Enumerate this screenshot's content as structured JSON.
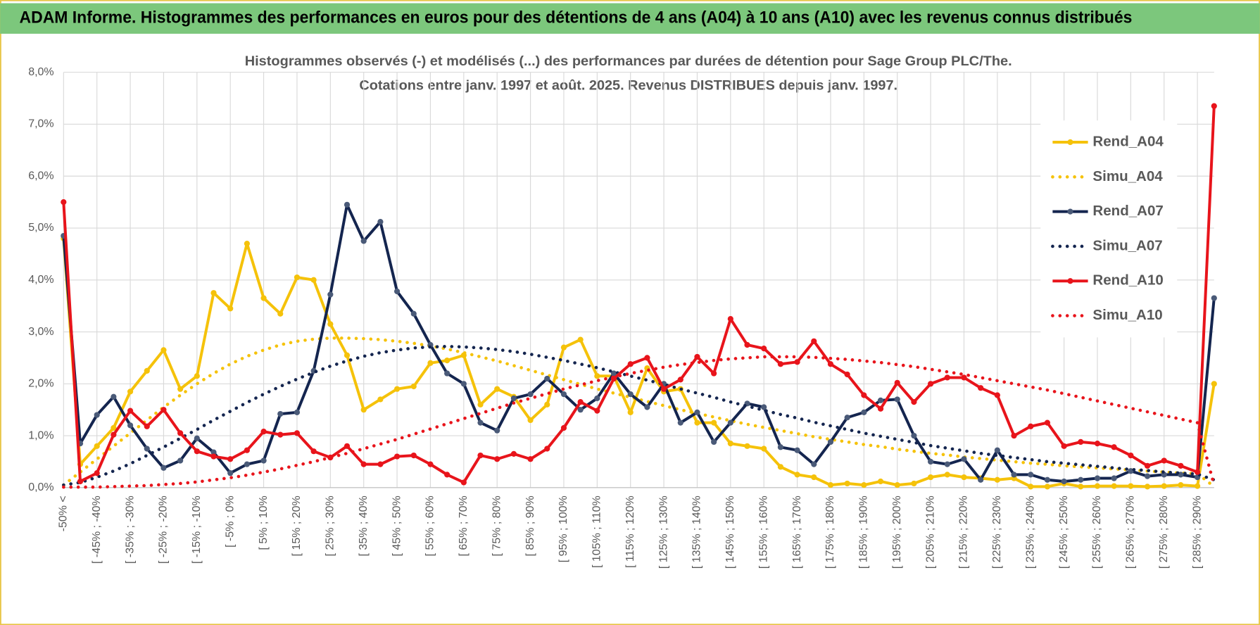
{
  "header": {
    "title": "ADAM Informe. Histogrammes des performances en euros pour des détentions de 4 ans (A04) à 10 ans (A10) avec les revenus connus distribués"
  },
  "chart_data": {
    "type": "line",
    "title": [
      "Histogrammes observés (-) et modélisés (...) des performances par durées de détention pour Sage Group PLC/The.",
      "Cotations entre janv. 1997 et août. 2025. Revenus DISTRIBUES depuis janv. 1997."
    ],
    "categories": [
      "-50% <",
      null,
      "[ -45% ; -40%",
      null,
      "[ -35% ; -30%",
      null,
      "[ -25% ; -20%",
      null,
      "[ -15% ; -10%",
      null,
      "[ -5% ; 0%",
      null,
      "[ 5% ; 10%",
      null,
      "[ 15% ; 20%",
      null,
      "[ 25% ; 30%",
      null,
      "[ 35% ; 40%",
      null,
      "[ 45% ; 50%",
      null,
      "[ 55% ; 60%",
      null,
      "[ 65% ; 70%",
      null,
      "[ 75% ; 80%",
      null,
      "[ 85% ; 90%",
      null,
      "[ 95% ; 100%",
      null,
      "[ 105% ; 110%",
      null,
      "[ 115% ; 120%",
      null,
      "[ 125% ; 130%",
      null,
      "[ 135% ; 140%",
      null,
      "[ 145% ; 150%",
      null,
      "[ 155% ; 160%",
      null,
      "[ 165% ; 170%",
      null,
      "[ 175% ; 180%",
      null,
      "[ 185% ; 190%",
      null,
      "[ 195% ; 200%",
      null,
      "[ 205% ; 210%",
      null,
      "[ 215% ; 220%",
      null,
      "[ 225% ; 230%",
      null,
      "[ 235% ; 240%",
      null,
      "[ 245% ; 250%",
      null,
      "[ 255% ; 260%",
      null,
      "[ 265% ; 270%",
      null,
      "[ 275% ; 280%",
      null,
      "[ 285% ; 290%",
      null
    ],
    "series": [
      {
        "name": "Rend_A04",
        "color": "#f5c20a",
        "style": "solid",
        "markers": true,
        "values": [
          4.8,
          0.45,
          0.8,
          1.15,
          1.85,
          2.25,
          2.65,
          1.9,
          2.15,
          3.75,
          3.45,
          4.7,
          3.65,
          3.35,
          4.05,
          4.0,
          3.15,
          2.55,
          1.5,
          1.7,
          1.9,
          1.95,
          2.4,
          2.45,
          2.55,
          1.6,
          1.9,
          1.75,
          1.3,
          1.6,
          2.7,
          2.85,
          2.15,
          2.15,
          1.45,
          2.3,
          1.85,
          1.9,
          1.25,
          1.25,
          0.85,
          0.8,
          0.75,
          0.4,
          0.25,
          0.2,
          0.05,
          0.08,
          0.05,
          0.12,
          0.05,
          0.08,
          0.2,
          0.25,
          0.2,
          0.18,
          0.15,
          0.18,
          0.02,
          0.02,
          0.08,
          0.02,
          0.03,
          0.03,
          0.03,
          0.02,
          0.03,
          0.05,
          0.03,
          2.0
        ]
      },
      {
        "name": "Simu_A04",
        "color": "#f5c20a",
        "style": "dotted",
        "markers": false,
        "values": [
          0.05,
          0.3,
          0.55,
          0.8,
          1.05,
          1.3,
          1.55,
          1.78,
          2.0,
          2.2,
          2.38,
          2.53,
          2.65,
          2.75,
          2.82,
          2.86,
          2.88,
          2.88,
          2.87,
          2.85,
          2.82,
          2.78,
          2.73,
          2.67,
          2.6,
          2.52,
          2.44,
          2.35,
          2.26,
          2.17,
          2.08,
          1.99,
          1.9,
          1.82,
          1.74,
          1.66,
          1.58,
          1.5,
          1.43,
          1.36,
          1.29,
          1.22,
          1.16,
          1.1,
          1.04,
          0.98,
          0.93,
          0.88,
          0.83,
          0.79,
          0.74,
          0.7,
          0.66,
          0.63,
          0.59,
          0.56,
          0.53,
          0.5,
          0.47,
          0.45,
          0.42,
          0.4,
          0.38,
          0.36,
          0.34,
          0.32,
          0.3,
          0.28,
          0.27,
          0.02
        ]
      },
      {
        "name": "Rend_A07",
        "color": "#14254f",
        "style": "solid",
        "markers": true,
        "values": [
          4.85,
          0.85,
          1.4,
          1.75,
          1.2,
          0.75,
          0.38,
          0.52,
          0.95,
          0.68,
          0.28,
          0.45,
          0.52,
          1.42,
          1.45,
          2.25,
          3.72,
          5.45,
          4.75,
          5.12,
          3.78,
          3.35,
          2.75,
          2.2,
          2.0,
          1.25,
          1.1,
          1.72,
          1.8,
          2.1,
          1.8,
          1.5,
          1.72,
          2.2,
          1.8,
          1.55,
          2.0,
          1.25,
          1.45,
          0.88,
          1.25,
          1.62,
          1.55,
          0.78,
          0.72,
          0.45,
          0.88,
          1.35,
          1.45,
          1.68,
          1.7,
          1.0,
          0.5,
          0.45,
          0.55,
          0.15,
          0.72,
          0.25,
          0.25,
          0.15,
          0.12,
          0.15,
          0.18,
          0.18,
          0.32,
          0.22,
          0.25,
          0.25,
          0.2,
          3.65
        ]
      },
      {
        "name": "Simu_A07",
        "color": "#14254f",
        "style": "dotted",
        "markers": false,
        "values": [
          0.05,
          0.1,
          0.2,
          0.32,
          0.46,
          0.62,
          0.78,
          0.95,
          1.12,
          1.3,
          1.47,
          1.64,
          1.8,
          1.95,
          2.09,
          2.22,
          2.34,
          2.44,
          2.53,
          2.6,
          2.65,
          2.69,
          2.71,
          2.72,
          2.71,
          2.69,
          2.66,
          2.62,
          2.57,
          2.51,
          2.45,
          2.38,
          2.31,
          2.23,
          2.15,
          2.07,
          1.99,
          1.9,
          1.82,
          1.74,
          1.65,
          1.57,
          1.49,
          1.41,
          1.34,
          1.26,
          1.19,
          1.12,
          1.05,
          0.99,
          0.93,
          0.87,
          0.81,
          0.76,
          0.71,
          0.66,
          0.62,
          0.58,
          0.54,
          0.5,
          0.47,
          0.44,
          0.41,
          0.38,
          0.35,
          0.33,
          0.3,
          0.28,
          0.26,
          0.15
        ]
      },
      {
        "name": "Rend_A10",
        "color": "#e8141b",
        "style": "solid",
        "markers": true,
        "values": [
          5.5,
          0.12,
          0.28,
          1.02,
          1.48,
          1.18,
          1.5,
          1.05,
          0.7,
          0.6,
          0.55,
          0.72,
          1.08,
          1.02,
          1.05,
          0.7,
          0.58,
          0.8,
          0.45,
          0.45,
          0.6,
          0.62,
          0.45,
          0.25,
          0.1,
          0.62,
          0.55,
          0.65,
          0.55,
          0.75,
          1.15,
          1.65,
          1.48,
          2.1,
          2.38,
          2.5,
          1.9,
          2.08,
          2.52,
          2.2,
          3.25,
          2.75,
          2.68,
          2.38,
          2.42,
          2.82,
          2.38,
          2.18,
          1.78,
          1.52,
          2.02,
          1.65,
          2.0,
          2.12,
          2.12,
          1.92,
          1.78,
          1.0,
          1.18,
          1.25,
          0.8,
          0.88,
          0.85,
          0.78,
          0.62,
          0.42,
          0.52,
          0.42,
          0.3,
          7.35
        ]
      },
      {
        "name": "Simu_A10",
        "color": "#e8141b",
        "style": "dotted",
        "markers": false,
        "values": [
          0.01,
          0.01,
          0.01,
          0.02,
          0.03,
          0.04,
          0.06,
          0.08,
          0.11,
          0.15,
          0.19,
          0.24,
          0.3,
          0.36,
          0.43,
          0.5,
          0.58,
          0.66,
          0.75,
          0.84,
          0.93,
          1.03,
          1.13,
          1.23,
          1.33,
          1.43,
          1.53,
          1.63,
          1.72,
          1.81,
          1.9,
          1.98,
          2.06,
          2.13,
          2.2,
          2.26,
          2.32,
          2.37,
          2.41,
          2.45,
          2.48,
          2.5,
          2.52,
          2.52,
          2.52,
          2.51,
          2.49,
          2.47,
          2.44,
          2.41,
          2.37,
          2.33,
          2.28,
          2.23,
          2.18,
          2.12,
          2.06,
          2.0,
          1.94,
          1.88,
          1.81,
          1.74,
          1.67,
          1.6,
          1.53,
          1.46,
          1.39,
          1.32,
          1.25,
          0.05
        ]
      }
    ],
    "ylim": [
      0,
      8
    ],
    "yticks": [
      {
        "value": 0,
        "label": "0,0%"
      },
      {
        "value": 1,
        "label": "1,0%"
      },
      {
        "value": 2,
        "label": "2,0%"
      },
      {
        "value": 3,
        "label": "3,0%"
      },
      {
        "value": 4,
        "label": "4,0%"
      },
      {
        "value": 5,
        "label": "5,0%"
      },
      {
        "value": 6,
        "label": "6,0%"
      },
      {
        "value": 7,
        "label": "7,0%"
      },
      {
        "value": 8,
        "label": "8,0%"
      }
    ],
    "grid": true,
    "legend": "upper right"
  }
}
